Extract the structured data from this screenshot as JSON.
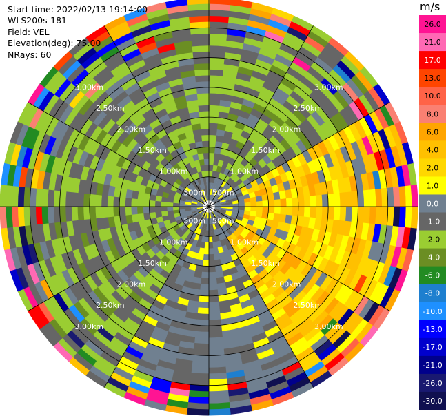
{
  "header": {
    "start_time": "Start time: 2022/02/13 19:14:00",
    "instrument": "WLS200s-181",
    "field": "Field: VEL",
    "elevation": "Elevation(deg): 75.00",
    "nrays": "NRays: 60"
  },
  "chart_data": {
    "type": "heatmap",
    "projection": "polar (PPI scan)",
    "grid": true,
    "range_ring_labels": [
      "500m",
      "1.00km",
      "1.50km",
      "2.00km",
      "2.50km",
      "3.00km"
    ],
    "range_rings_km": [
      0.5,
      1.0,
      1.5,
      2.0,
      2.5,
      3.0
    ],
    "max_range_km": 3.5,
    "azimuth_spokes_deg": [
      0,
      30,
      60,
      90,
      120,
      150,
      180,
      210,
      240,
      270,
      300,
      330
    ],
    "colorbar": {
      "label": "m/s",
      "tick_labels": [
        "26.0",
        "21.0",
        "17.0",
        "13.0",
        "10.0",
        "8.0",
        "6.0",
        "4.0",
        "2.0",
        "1.0",
        "0.0",
        "-1.0",
        "-2.0",
        "-4.0",
        "-6.0",
        "-8.0",
        "-10.0",
        "-13.0",
        "-17.0",
        "-21.0",
        "-26.0",
        "-30.0"
      ],
      "colors": [
        "#ff1493",
        "#ff69b4",
        "#ff0000",
        "#ff4500",
        "#ff6347",
        "#fa8072",
        "#ffa500",
        "#ffc000",
        "#ffd700",
        "#ffff00",
        "#708090",
        "#666666",
        "#9acd32",
        "#6b8e23",
        "#228b22",
        "#1e7fcf",
        "#1e90ff",
        "#0000ff",
        "#0000cd",
        "#00008b",
        "#191970",
        "#101050"
      ]
    },
    "sectors": [
      {
        "azimuth": "east (60-150 deg)",
        "dominant_velocity_ms": "1.0 to 4.0",
        "outer_edge_ms": "-30.0 to 26.0 mixed"
      },
      {
        "azimuth": "west and north (210-30 deg)",
        "dominant_velocity_ms": "-2.0 to -1.0",
        "outer_edge_ms": "-30.0 to 26.0 mixed"
      },
      {
        "azimuth": "south (150-210 deg)",
        "dominant_velocity_ms": "0.0 to -1.0",
        "outer_edge_ms": "-30.0 to 26.0 mixed"
      }
    ]
  }
}
